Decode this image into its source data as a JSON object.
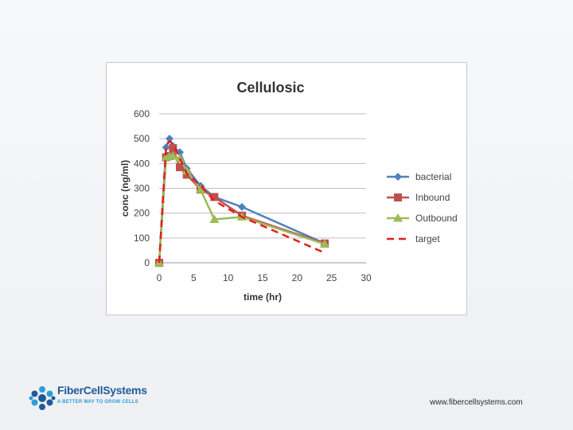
{
  "chart_data": {
    "type": "line",
    "title": "Cellulosic",
    "xlabel": "time (hr)",
    "ylabel": "conc (ng/ml)",
    "xlim": [
      0,
      30
    ],
    "ylim": [
      0,
      600
    ],
    "xticks": [
      0,
      5,
      10,
      15,
      20,
      25,
      30
    ],
    "yticks": [
      0,
      100,
      200,
      300,
      400,
      500,
      600
    ],
    "xtick_labels": [
      "0",
      "5",
      "10",
      "15",
      "20",
      "25",
      "30"
    ],
    "ytick_labels": [
      "0",
      "100",
      "200",
      "300",
      "400",
      "500",
      "600"
    ],
    "grid": "horizontal",
    "legend_position": "right",
    "series": [
      {
        "name": "bacterial",
        "color": "#4f81bd",
        "marker": "diamond",
        "dash": "solid",
        "x": [
          0,
          1,
          1.5,
          2,
          3,
          4,
          6,
          8,
          12,
          24
        ],
        "y": [
          0,
          465,
          500,
          470,
          445,
          380,
          310,
          265,
          225,
          78
        ]
      },
      {
        "name": "Inbound",
        "color": "#c0504d",
        "marker": "square",
        "dash": "solid",
        "x": [
          0,
          1,
          1.5,
          2,
          3,
          4,
          6,
          8,
          12,
          24
        ],
        "y": [
          0,
          425,
          430,
          462,
          385,
          355,
          295,
          265,
          190,
          78
        ]
      },
      {
        "name": "Outbound",
        "color": "#9bbb59",
        "marker": "triangle",
        "dash": "solid",
        "x": [
          0,
          1,
          1.5,
          2,
          3,
          4,
          6,
          8,
          12,
          24
        ],
        "y": [
          0,
          425,
          428,
          430,
          420,
          370,
          295,
          175,
          185,
          75
        ]
      },
      {
        "name": "target",
        "color": "#e0201b",
        "marker": "none",
        "dash": "dashed",
        "x": [
          0,
          1,
          1.5,
          2,
          3,
          4,
          6,
          8,
          12,
          24
        ],
        "y": [
          0,
          470,
          490,
          478,
          420,
          360,
          310,
          250,
          185,
          40
        ]
      }
    ]
  },
  "footer": {
    "logo_name": "FiberCellSystems",
    "logo_tagline": "A BETTER WAY TO GROW CELLS",
    "logo_primary_color": "#1f5b9a",
    "logo_accent_color": "#2a9fd6",
    "website": "www.fibercellsystems.com"
  }
}
